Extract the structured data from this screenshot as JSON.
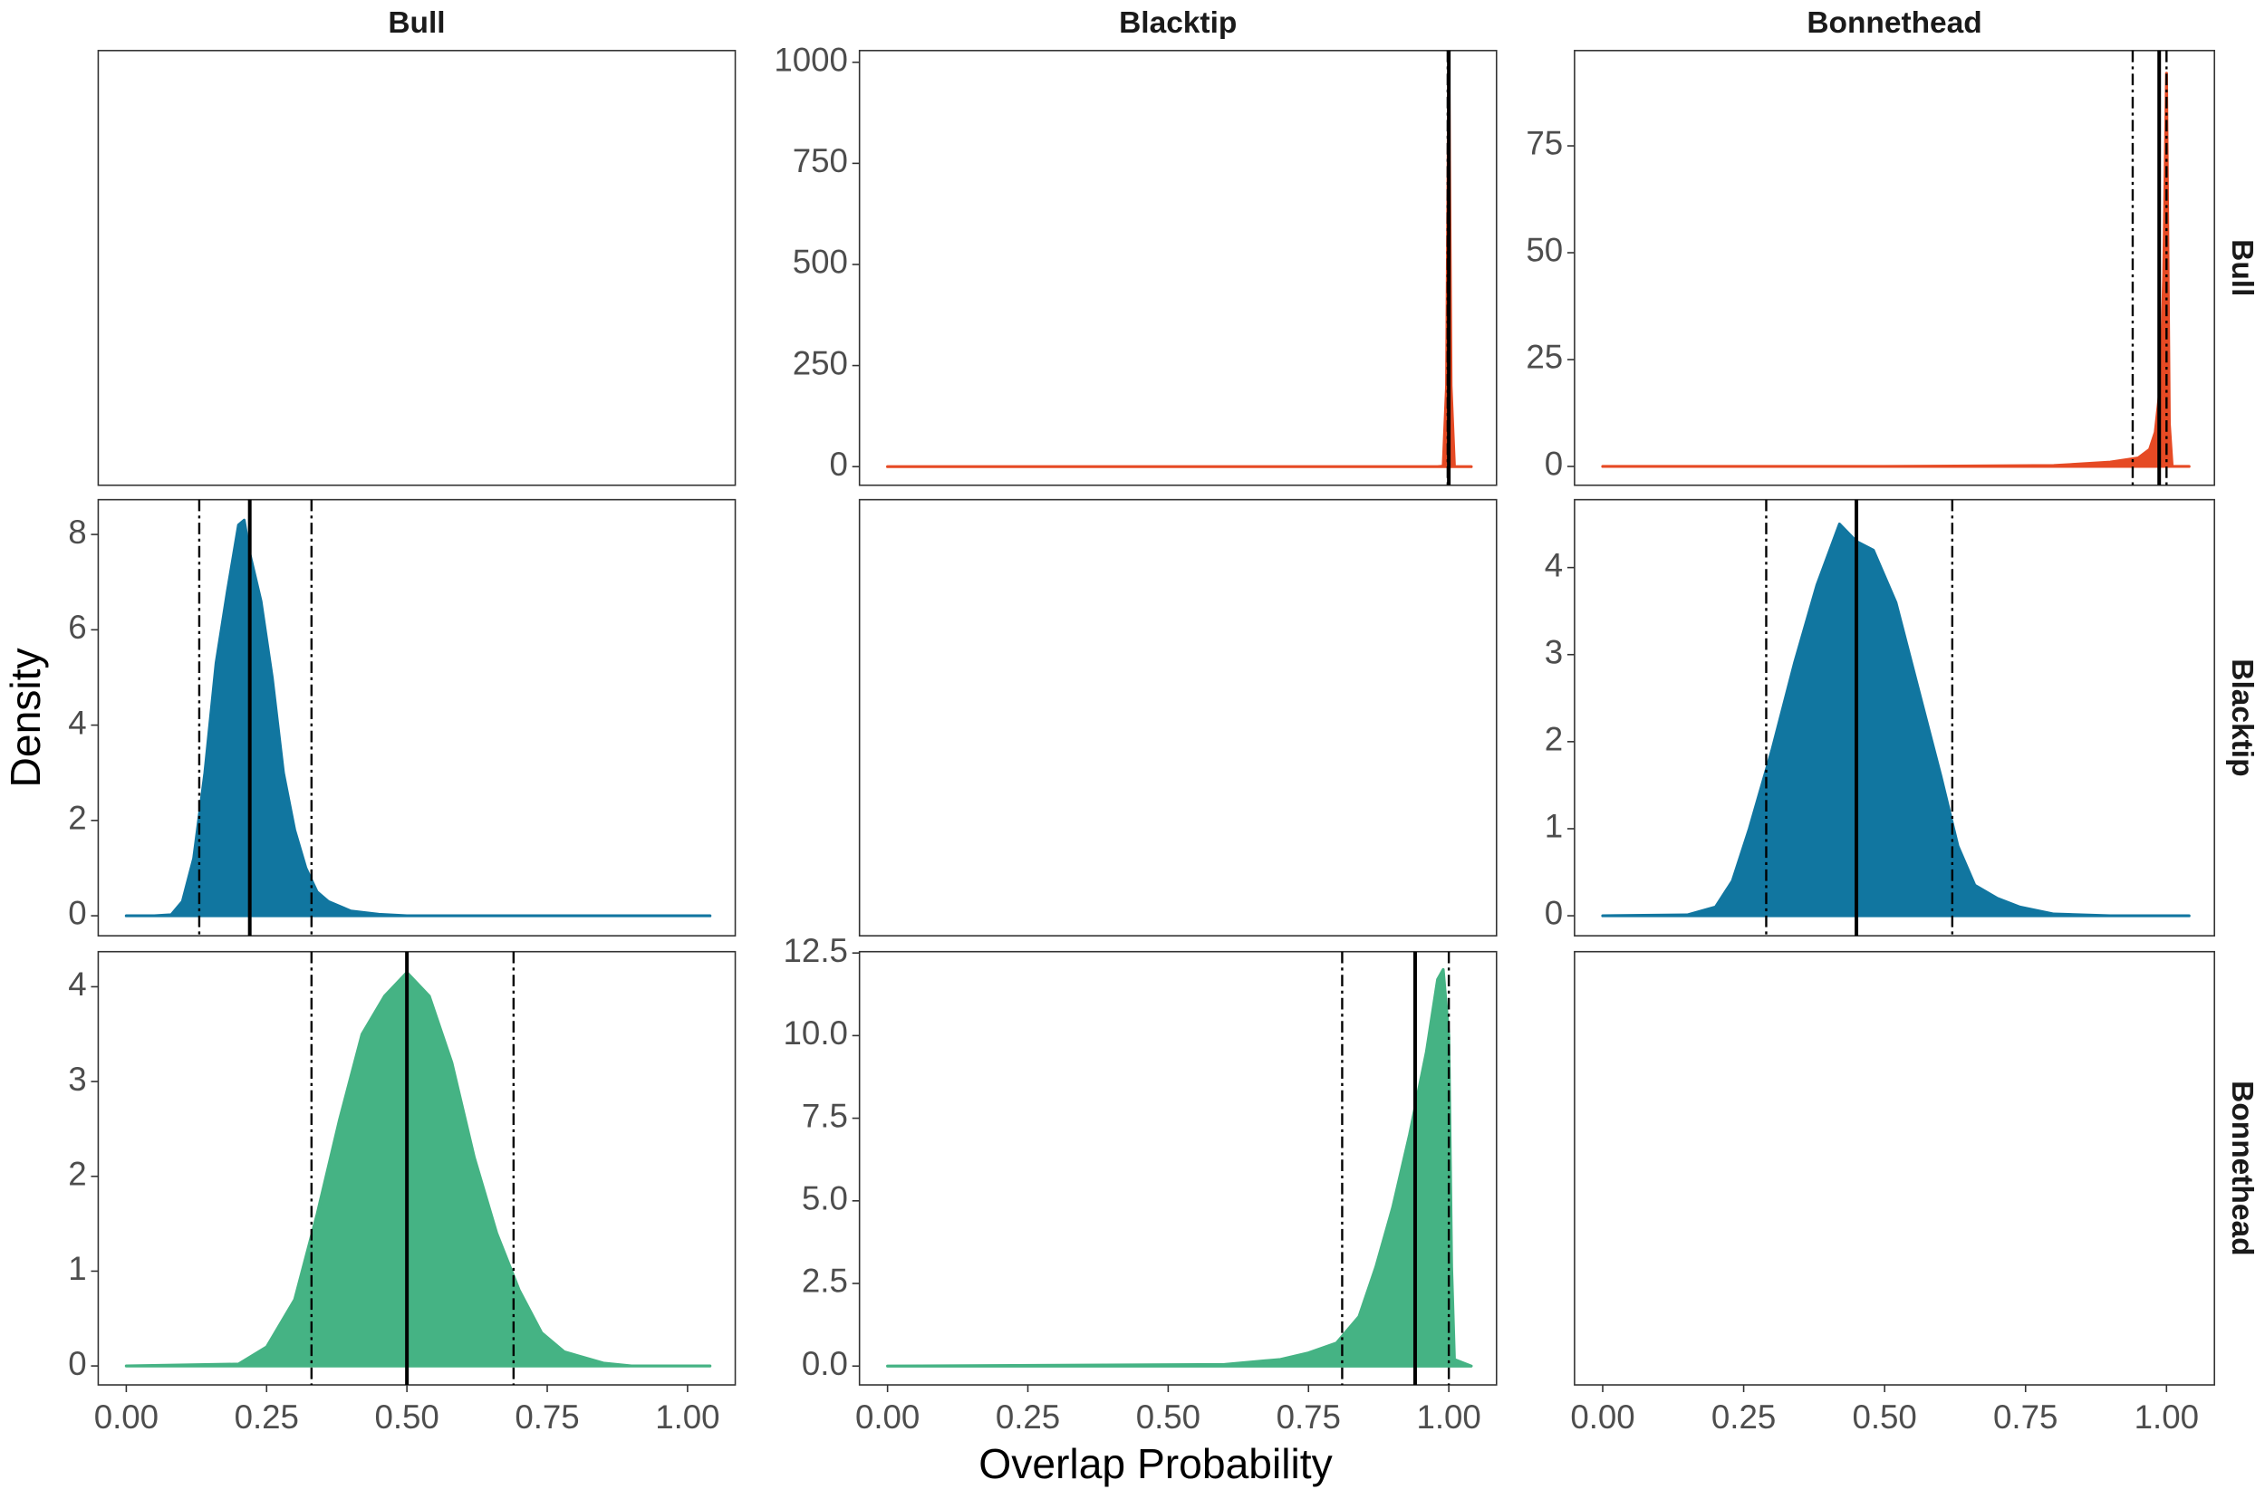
{
  "x_label": "Overlap Probability",
  "y_label": "Density",
  "columns": [
    "Bull",
    "Blacktip",
    "Bonnethead"
  ],
  "rows": [
    "Bull",
    "Blacktip",
    "Bonnethead"
  ],
  "xlim": [
    -0.05,
    1.085
  ],
  "xticks": [
    {
      "value": 0,
      "label": "0.00"
    },
    {
      "value": 0.25,
      "label": "0.25"
    },
    {
      "value": 0.5,
      "label": "0.50"
    },
    {
      "value": 0.75,
      "label": "0.75"
    },
    {
      "value": 1,
      "label": "1.00"
    }
  ],
  "chart_data": [
    null,
    {
      "type": "area",
      "color": "#e64a24",
      "x": [
        0,
        0.2,
        0.4,
        0.6,
        0.8,
        0.98,
        0.99,
        0.996,
        1.0,
        1.004,
        1.01,
        1.04
      ],
      "values": [
        0,
        0,
        0,
        0,
        0,
        0,
        1,
        200,
        1020,
        200,
        0,
        0
      ],
      "ylim": [
        -46,
        1029
      ],
      "yticks": [
        0,
        250,
        500,
        750,
        1000
      ],
      "mean": 1.0,
      "ci": [
        0.998,
        1.0
      ]
    },
    {
      "type": "area",
      "color": "#e64a24",
      "x": [
        0,
        0.5,
        0.8,
        0.9,
        0.95,
        0.97,
        0.98,
        0.99,
        0.995,
        1.0,
        1.005,
        1.01,
        1.04
      ],
      "values": [
        0,
        0,
        0.2,
        1,
        2,
        4,
        8,
        20,
        45,
        92,
        10,
        0,
        0
      ],
      "ylim": [
        -4.4,
        97.3
      ],
      "yticks": [
        0,
        25,
        50,
        75
      ],
      "mean": 0.987,
      "ci": [
        0.94,
        1.0
      ]
    },
    {
      "type": "area",
      "color": "#1176a0",
      "x": [
        0,
        0.05,
        0.08,
        0.1,
        0.12,
        0.14,
        0.16,
        0.18,
        0.2,
        0.21,
        0.22,
        0.24,
        0.26,
        0.28,
        0.3,
        0.32,
        0.34,
        0.36,
        0.4,
        0.45,
        0.5,
        1.04
      ],
      "values": [
        0,
        0,
        0.02,
        0.3,
        1.2,
        3,
        5.3,
        6.8,
        8.2,
        8.3,
        7.6,
        6.6,
        5,
        3,
        1.8,
        1,
        0.5,
        0.3,
        0.1,
        0.03,
        0,
        0
      ],
      "ylim": [
        -0.42,
        8.73
      ],
      "yticks": [
        0,
        2,
        4,
        6,
        8
      ],
      "mean": 0.22,
      "ci": [
        0.13,
        0.33
      ]
    },
    null,
    {
      "type": "area",
      "color": "#1176a0",
      "x": [
        0,
        0.15,
        0.2,
        0.23,
        0.26,
        0.3,
        0.34,
        0.38,
        0.42,
        0.45,
        0.48,
        0.52,
        0.56,
        0.6,
        0.63,
        0.66,
        0.7,
        0.74,
        0.8,
        0.9,
        1.04
      ],
      "values": [
        0,
        0.01,
        0.1,
        0.4,
        1,
        1.9,
        2.9,
        3.8,
        4.5,
        4.3,
        4.2,
        3.6,
        2.6,
        1.6,
        0.8,
        0.35,
        0.2,
        0.1,
        0.02,
        0,
        0
      ],
      "ylim": [
        -0.23,
        4.78
      ],
      "yticks": [
        0,
        1,
        2,
        3,
        4
      ],
      "mean": 0.45,
      "ci": [
        0.29,
        0.62
      ]
    },
    {
      "type": "area",
      "color": "#45b384",
      "x": [
        0,
        0.2,
        0.25,
        0.3,
        0.34,
        0.38,
        0.42,
        0.46,
        0.5,
        0.54,
        0.58,
        0.62,
        0.66,
        0.7,
        0.74,
        0.78,
        0.85,
        0.9,
        1.04
      ],
      "values": [
        0,
        0.02,
        0.2,
        0.7,
        1.6,
        2.6,
        3.5,
        3.9,
        4.15,
        3.9,
        3.2,
        2.2,
        1.4,
        0.8,
        0.35,
        0.15,
        0.03,
        0,
        0
      ],
      "ylim": [
        -0.2,
        4.37
      ],
      "yticks": [
        0,
        1,
        2,
        3,
        4
      ],
      "mean": 0.5,
      "ci": [
        0.33,
        0.69
      ]
    },
    {
      "type": "area",
      "color": "#45b384",
      "x": [
        0,
        0.6,
        0.7,
        0.75,
        0.8,
        0.84,
        0.87,
        0.9,
        0.93,
        0.96,
        0.98,
        0.99,
        1.0,
        1.005,
        1.01,
        1.04
      ],
      "values": [
        0,
        0.05,
        0.2,
        0.4,
        0.7,
        1.5,
        3,
        4.8,
        7,
        9.5,
        11.7,
        12,
        10,
        3,
        0.2,
        0
      ],
      "ylim": [
        -0.57,
        12.54
      ],
      "yticks": [
        {
          "value": 0,
          "label": "0.0"
        },
        {
          "value": 2.5,
          "label": "2.5"
        },
        {
          "value": 5,
          "label": "5.0"
        },
        {
          "value": 7.5,
          "label": "7.5"
        },
        {
          "value": 10,
          "label": "10.0"
        },
        {
          "value": 12.5,
          "label": "12.5"
        }
      ],
      "mean": 0.94,
      "ci": [
        0.81,
        1.0
      ]
    },
    null
  ]
}
